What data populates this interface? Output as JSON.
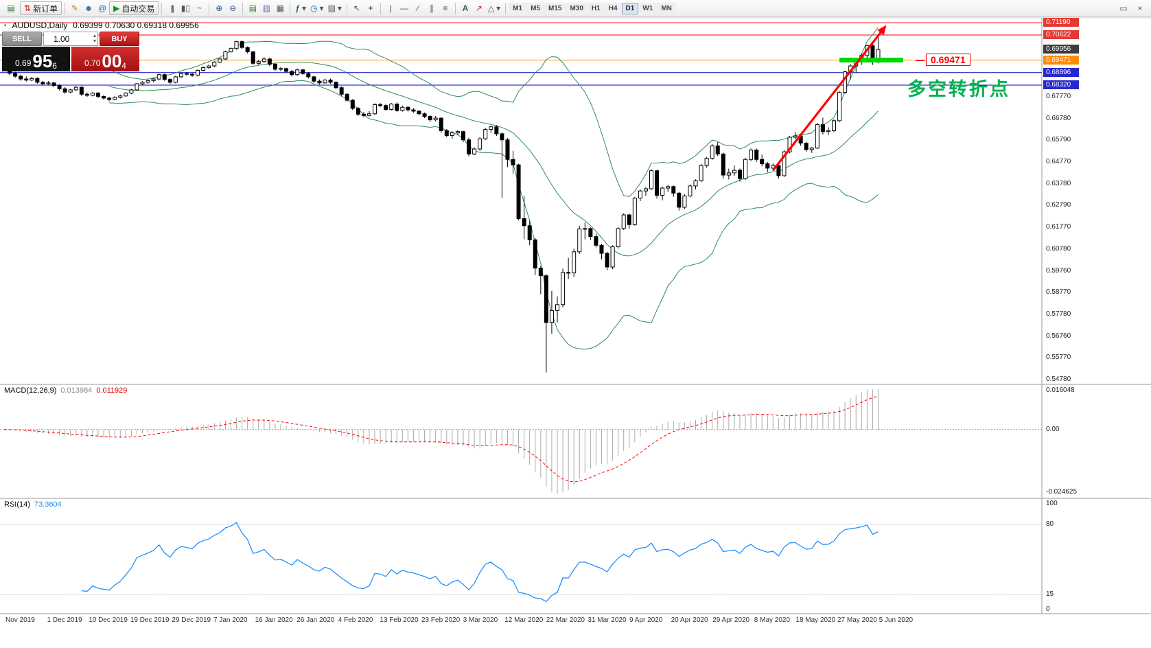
{
  "toolbar": {
    "new_order_label": "新订单",
    "autotrading_label": "自动交易",
    "timeframes": [
      "M1",
      "M5",
      "M15",
      "M30",
      "H1",
      "H4",
      "D1",
      "W1",
      "MN"
    ],
    "active_timeframe": "D1"
  },
  "icons": {
    "app_logo": "▤",
    "new_order": "⇅",
    "metaeditor": "✎",
    "accounts": "☻",
    "experts": "@",
    "autotrading_play": "▶",
    "chart_bars": "|||",
    "chart_candles": "▮▯",
    "chart_line": "~",
    "zoom_in": "⊕",
    "zoom_out": "⊖",
    "new_chart": "▤",
    "profiles": "▥",
    "tile_windows": "▦",
    "indicators": "ƒ",
    "periods": "◷",
    "templates": "▨",
    "cursor": "↖",
    "crosshair": "+",
    "vertical_line": "|",
    "horizontal_line": "—",
    "trend_line": "∕",
    "channel": "∥",
    "fibonacci": "≡",
    "text_tool": "A",
    "arrows_tool": "↗",
    "shapes": "△",
    "dropdown": "▾",
    "restore_window": "▭",
    "close_window": "×",
    "spinner_up": "▴",
    "spinner_down": "▾"
  },
  "chart_header": {
    "title": "AUDUSD,Daily",
    "ohlc": "0.69399 0.70630 0.69318 0.69956"
  },
  "trade_panel": {
    "sell_label": "SELL",
    "buy_label": "BUY",
    "volume": "1.00",
    "bid_main": "0.69",
    "bid_pips": "95",
    "bid_point": "6",
    "ask_main": "0.70",
    "ask_pips": "00",
    "ask_point": "4"
  },
  "annotations": {
    "turning_point_label": "多空转折点",
    "price_callout": "0.69471",
    "arrow": {
      "from_bar": 139,
      "from_price": 0.644,
      "to_bar": 159.5,
      "to_price": 0.7108,
      "color": "#ff0000"
    },
    "highlight": {
      "from_bar": 151,
      "to_bar": 162.5,
      "price": 0.69471,
      "color": "#00d800"
    }
  },
  "indicators": {
    "macd_label": "MACD(12,26,9)",
    "macd_main_value": "0.013984",
    "macd_signal_value": "0.011929",
    "rsi_label": "RSI(14)",
    "rsi_value": "73.3604"
  },
  "price_scale": {
    "plain_labels": [
      "0.67770",
      "0.66780",
      "0.65790",
      "0.64770",
      "0.63780",
      "0.62790",
      "0.61770",
      "0.60780",
      "0.59760",
      "0.58770",
      "0.57780",
      "0.56760",
      "0.55770",
      "0.54780"
    ],
    "tags": [
      {
        "value": "0.71190",
        "price": 0.7119,
        "bg": "#e53935"
      },
      {
        "value": "0.70622",
        "price": 0.70622,
        "bg": "#e53935"
      },
      {
        "value": "0.69956",
        "price": 0.69956,
        "bg": "#3c3c3c"
      },
      {
        "value": "0.69471",
        "price": 0.69471,
        "bg": "#ff8c00"
      },
      {
        "value": "0.68896",
        "price": 0.68896,
        "bg": "#2727cd"
      },
      {
        "value": "0.68320",
        "price": 0.6832,
        "bg": "#2727cd"
      }
    ]
  },
  "macd_scale": {
    "max_label": "0.016048",
    "zero_label": "0.00",
    "min_label": "-0.024625"
  },
  "rsi_scale": {
    "labels": [
      {
        "v": 100,
        "t": "100"
      },
      {
        "v": 80,
        "t": "80"
      },
      {
        "v": 15,
        "t": "15"
      },
      {
        "v": 0,
        "t": "0"
      }
    ],
    "levels": [
      80,
      15
    ]
  },
  "time_axis": {
    "labels": [
      "Nov 2019",
      "1 Dec 2019",
      "10 Dec 2019",
      "19 Dec 2019",
      "29 Dec 2019",
      "7 Jan 2020",
      "16 Jan 2020",
      "26 Jan 2020",
      "4 Feb 2020",
      "13 Feb 2020",
      "23 Feb 2020",
      "3 Mar 2020",
      "12 Mar 2020",
      "22 Mar 2020",
      "31 Mar 2020",
      "9 Apr 2020",
      "20 Apr 2020",
      "29 Apr 2020",
      "8 May 2020",
      "18 May 2020",
      "27 May 2020",
      "5 Jun 2020"
    ]
  },
  "chart_data": {
    "type": "candlestick",
    "symbol": "AUDUSD",
    "period": "Daily",
    "current_bar": {
      "open": 0.69399,
      "high": 0.7063,
      "low": 0.69318,
      "close": 0.69956
    },
    "price_range": {
      "top": 0.7135,
      "bottom": 0.5455
    },
    "hlines": [
      {
        "price": 0.7119,
        "color": "#ff0000"
      },
      {
        "price": 0.70622,
        "color": "#ff0000"
      },
      {
        "price": 0.69471,
        "color": "#ff8c00"
      },
      {
        "price": 0.68896,
        "color": "#0000cd"
      },
      {
        "price": 0.6832,
        "color": "#0000cd"
      }
    ],
    "bollinger": {
      "period": 20,
      "deviation": 2,
      "color": "#2e8b57"
    },
    "macd": {
      "fast": 12,
      "slow": 26,
      "signal": 9
    },
    "rsi": {
      "period": 14
    },
    "candles": [
      [
        0.6915,
        0.6921,
        0.6895,
        0.6901
      ],
      [
        0.6901,
        0.6908,
        0.6878,
        0.6886
      ],
      [
        0.6886,
        0.6893,
        0.6865,
        0.6873
      ],
      [
        0.6873,
        0.688,
        0.6852,
        0.686
      ],
      [
        0.686,
        0.6872,
        0.6848,
        0.6855
      ],
      [
        0.6855,
        0.687,
        0.685,
        0.6862
      ],
      [
        0.6862,
        0.6868,
        0.6838,
        0.6845
      ],
      [
        0.6845,
        0.6852,
        0.683,
        0.6838
      ],
      [
        0.6838,
        0.685,
        0.6832,
        0.6842
      ],
      [
        0.6842,
        0.6848,
        0.6822,
        0.683
      ],
      [
        0.683,
        0.6836,
        0.6808,
        0.6815
      ],
      [
        0.6815,
        0.6822,
        0.6792,
        0.68
      ],
      [
        0.68,
        0.6815,
        0.6795,
        0.681
      ],
      [
        0.681,
        0.6828,
        0.6805,
        0.6822
      ],
      [
        0.6822,
        0.6826,
        0.6782,
        0.679
      ],
      [
        0.679,
        0.6798,
        0.6778,
        0.6785
      ],
      [
        0.6785,
        0.68,
        0.678,
        0.6795
      ],
      [
        0.6795,
        0.68,
        0.6772,
        0.678
      ],
      [
        0.678,
        0.6786,
        0.6765,
        0.6772
      ],
      [
        0.6772,
        0.6778,
        0.6758,
        0.6766
      ],
      [
        0.6766,
        0.6782,
        0.6762,
        0.6775
      ],
      [
        0.6775,
        0.6788,
        0.677,
        0.6782
      ],
      [
        0.6782,
        0.68,
        0.6778,
        0.6795
      ],
      [
        0.6795,
        0.6815,
        0.679,
        0.681
      ],
      [
        0.681,
        0.6842,
        0.6806,
        0.6838
      ],
      [
        0.6838,
        0.685,
        0.6832,
        0.6845
      ],
      [
        0.6845,
        0.6858,
        0.6838,
        0.6852
      ],
      [
        0.6852,
        0.6866,
        0.6845,
        0.686
      ],
      [
        0.686,
        0.6885,
        0.6855,
        0.688
      ],
      [
        0.688,
        0.6885,
        0.6852,
        0.6858
      ],
      [
        0.6858,
        0.6865,
        0.6838,
        0.6845
      ],
      [
        0.6845,
        0.6875,
        0.684,
        0.687
      ],
      [
        0.687,
        0.689,
        0.6865,
        0.6885
      ],
      [
        0.6885,
        0.6892,
        0.6875,
        0.6882
      ],
      [
        0.6882,
        0.6888,
        0.687,
        0.6878
      ],
      [
        0.6878,
        0.6905,
        0.6872,
        0.69
      ],
      [
        0.69,
        0.6918,
        0.6895,
        0.6912
      ],
      [
        0.6912,
        0.6926,
        0.6905,
        0.692
      ],
      [
        0.692,
        0.6942,
        0.6915,
        0.6938
      ],
      [
        0.6938,
        0.6958,
        0.6932,
        0.6952
      ],
      [
        0.6952,
        0.699,
        0.6948,
        0.6985
      ],
      [
        0.6985,
        0.7005,
        0.698,
        0.7
      ],
      [
        0.7,
        0.7035,
        0.6995,
        0.7032
      ],
      [
        0.7032,
        0.7038,
        0.6998,
        0.7005
      ],
      [
        0.7005,
        0.701,
        0.6978,
        0.6985
      ],
      [
        0.6985,
        0.699,
        0.6925,
        0.6932
      ],
      [
        0.6932,
        0.6948,
        0.6925,
        0.694
      ],
      [
        0.694,
        0.696,
        0.6935,
        0.6952
      ],
      [
        0.6952,
        0.6958,
        0.692,
        0.6928
      ],
      [
        0.6928,
        0.6935,
        0.6898,
        0.6905
      ],
      [
        0.6905,
        0.6915,
        0.6895,
        0.6908
      ],
      [
        0.6908,
        0.6912,
        0.6888,
        0.6895
      ],
      [
        0.6895,
        0.6902,
        0.6872,
        0.688
      ],
      [
        0.688,
        0.6908,
        0.6875,
        0.6902
      ],
      [
        0.6902,
        0.6908,
        0.6878,
        0.6885
      ],
      [
        0.6885,
        0.6892,
        0.6862,
        0.687
      ],
      [
        0.687,
        0.6876,
        0.6842,
        0.685
      ],
      [
        0.685,
        0.6858,
        0.6835,
        0.6842
      ],
      [
        0.6842,
        0.6862,
        0.6838,
        0.6855
      ],
      [
        0.6855,
        0.6862,
        0.6838,
        0.6845
      ],
      [
        0.6845,
        0.685,
        0.6812,
        0.682
      ],
      [
        0.682,
        0.6826,
        0.6782,
        0.679
      ],
      [
        0.679,
        0.6795,
        0.6755,
        0.6762
      ],
      [
        0.6762,
        0.6768,
        0.6718,
        0.6725
      ],
      [
        0.6725,
        0.6732,
        0.669,
        0.6698
      ],
      [
        0.6698,
        0.6708,
        0.6685,
        0.6692
      ],
      [
        0.6692,
        0.6712,
        0.6688,
        0.67
      ],
      [
        0.67,
        0.6748,
        0.6695,
        0.6742
      ],
      [
        0.6742,
        0.675,
        0.673,
        0.6738
      ],
      [
        0.6738,
        0.6745,
        0.6712,
        0.672
      ],
      [
        0.672,
        0.675,
        0.6715,
        0.6745
      ],
      [
        0.6745,
        0.6752,
        0.6708,
        0.6715
      ],
      [
        0.6715,
        0.6738,
        0.671,
        0.673
      ],
      [
        0.673,
        0.6736,
        0.671,
        0.6718
      ],
      [
        0.6718,
        0.6725,
        0.6705,
        0.6712
      ],
      [
        0.6712,
        0.6718,
        0.6692,
        0.67
      ],
      [
        0.67,
        0.6706,
        0.668,
        0.6688
      ],
      [
        0.6688,
        0.6695,
        0.6662,
        0.6672
      ],
      [
        0.6672,
        0.669,
        0.6665,
        0.668
      ],
      [
        0.668,
        0.6685,
        0.6612,
        0.6622
      ],
      [
        0.6622,
        0.663,
        0.6592,
        0.66
      ],
      [
        0.66,
        0.662,
        0.6585,
        0.6612
      ],
      [
        0.6612,
        0.6625,
        0.6602,
        0.6618
      ],
      [
        0.6618,
        0.6622,
        0.657,
        0.658
      ],
      [
        0.658,
        0.659,
        0.6505,
        0.6515
      ],
      [
        0.6515,
        0.6545,
        0.651,
        0.6538
      ],
      [
        0.6538,
        0.6592,
        0.653,
        0.6585
      ],
      [
        0.6585,
        0.6635,
        0.658,
        0.6628
      ],
      [
        0.6628,
        0.6645,
        0.6612,
        0.664
      ],
      [
        0.664,
        0.6648,
        0.6598,
        0.6608
      ],
      [
        0.6608,
        0.6615,
        0.6313,
        0.658
      ],
      [
        0.658,
        0.6588,
        0.6455,
        0.649
      ],
      [
        0.649,
        0.653,
        0.6425,
        0.6465
      ],
      [
        0.6465,
        0.647,
        0.621,
        0.6218
      ],
      [
        0.6218,
        0.6322,
        0.6123,
        0.6185
      ],
      [
        0.6185,
        0.6208,
        0.6095,
        0.612
      ],
      [
        0.612,
        0.6128,
        0.5958,
        0.599
      ],
      [
        0.599,
        0.6,
        0.587,
        0.5955
      ],
      [
        0.5955,
        0.5962,
        0.551,
        0.574
      ],
      [
        0.574,
        0.5885,
        0.5688,
        0.5795
      ],
      [
        0.5795,
        0.586,
        0.574,
        0.5822
      ],
      [
        0.5822,
        0.5988,
        0.581,
        0.597
      ],
      [
        0.597,
        0.6038,
        0.594,
        0.5968
      ],
      [
        0.5968,
        0.608,
        0.595,
        0.6065
      ],
      [
        0.6065,
        0.6185,
        0.6055,
        0.617
      ],
      [
        0.617,
        0.62,
        0.6122,
        0.6172
      ],
      [
        0.6172,
        0.6178,
        0.612,
        0.6135
      ],
      [
        0.6135,
        0.6148,
        0.6085,
        0.6095
      ],
      [
        0.6095,
        0.6102,
        0.603,
        0.6058
      ],
      [
        0.6058,
        0.6065,
        0.598,
        0.5995
      ],
      [
        0.5995,
        0.6095,
        0.5985,
        0.6088
      ],
      [
        0.6088,
        0.618,
        0.608,
        0.6172
      ],
      [
        0.6172,
        0.6242,
        0.6165,
        0.6235
      ],
      [
        0.6235,
        0.624,
        0.6172,
        0.619
      ],
      [
        0.619,
        0.6318,
        0.6185,
        0.6312
      ],
      [
        0.6312,
        0.6352,
        0.6298,
        0.6345
      ],
      [
        0.6345,
        0.6362,
        0.6322,
        0.6355
      ],
      [
        0.6355,
        0.6445,
        0.635,
        0.6438
      ],
      [
        0.6438,
        0.6442,
        0.631,
        0.6325
      ],
      [
        0.6325,
        0.6365,
        0.6302,
        0.6358
      ],
      [
        0.6358,
        0.6372,
        0.634,
        0.6365
      ],
      [
        0.6365,
        0.637,
        0.6318,
        0.6335
      ],
      [
        0.6335,
        0.634,
        0.6255,
        0.627
      ],
      [
        0.627,
        0.633,
        0.6262,
        0.6322
      ],
      [
        0.6322,
        0.6375,
        0.6315,
        0.6368
      ],
      [
        0.6368,
        0.6398,
        0.6352,
        0.6392
      ],
      [
        0.6392,
        0.647,
        0.6385,
        0.6462
      ],
      [
        0.6462,
        0.6502,
        0.6452,
        0.6495
      ],
      [
        0.6495,
        0.656,
        0.6488,
        0.6552
      ],
      [
        0.6552,
        0.657,
        0.6505,
        0.6515
      ],
      [
        0.6515,
        0.6522,
        0.6402,
        0.6418
      ],
      [
        0.6418,
        0.6448,
        0.6398,
        0.6428
      ],
      [
        0.6428,
        0.6462,
        0.6415,
        0.644
      ],
      [
        0.644,
        0.6448,
        0.6388,
        0.6402
      ],
      [
        0.6402,
        0.6498,
        0.6395,
        0.649
      ],
      [
        0.649,
        0.654,
        0.6482,
        0.6533
      ],
      [
        0.6533,
        0.654,
        0.6478,
        0.649
      ],
      [
        0.649,
        0.6512,
        0.6458,
        0.647
      ],
      [
        0.647,
        0.6478,
        0.6432,
        0.645
      ],
      [
        0.645,
        0.6472,
        0.6438,
        0.6462
      ],
      [
        0.6462,
        0.6468,
        0.6402,
        0.6415
      ],
      [
        0.6415,
        0.6532,
        0.641,
        0.6525
      ],
      [
        0.6525,
        0.6598,
        0.6518,
        0.6592
      ],
      [
        0.6592,
        0.6616,
        0.6582,
        0.6598
      ],
      [
        0.6598,
        0.6602,
        0.6552,
        0.6565
      ],
      [
        0.6565,
        0.6572,
        0.6525,
        0.6535
      ],
      [
        0.6535,
        0.6548,
        0.652,
        0.6542
      ],
      [
        0.6542,
        0.6658,
        0.6538,
        0.665
      ],
      [
        0.665,
        0.6682,
        0.6605,
        0.6618
      ],
      [
        0.6618,
        0.6638,
        0.6602,
        0.6622
      ],
      [
        0.6622,
        0.6675,
        0.6615,
        0.6668
      ],
      [
        0.6668,
        0.6805,
        0.6662,
        0.6798
      ],
      [
        0.6798,
        0.6898,
        0.6792,
        0.6893
      ],
      [
        0.6893,
        0.6928,
        0.6858,
        0.692
      ],
      [
        0.692,
        0.6945,
        0.6888,
        0.6938
      ],
      [
        0.6938,
        0.6975,
        0.6925,
        0.6968
      ],
      [
        0.6968,
        0.7018,
        0.6952,
        0.7013
      ],
      [
        0.7013,
        0.7022,
        0.6925,
        0.694
      ],
      [
        0.69399,
        0.7063,
        0.69318,
        0.69956
      ]
    ]
  }
}
